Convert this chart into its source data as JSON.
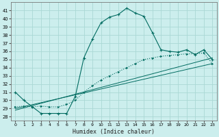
{
  "title": "",
  "xlabel": "Humidex (Indice chaleur)",
  "background_color": "#cceeed",
  "grid_color": "#aad8d5",
  "line_color": "#006b60",
  "xlim": [
    -0.5,
    23.5
  ],
  "ylim": [
    27.5,
    42.0
  ],
  "x_ticks": [
    0,
    1,
    2,
    3,
    4,
    5,
    6,
    7,
    8,
    9,
    10,
    11,
    12,
    13,
    14,
    15,
    16,
    17,
    18,
    19,
    20,
    21,
    22,
    23
  ],
  "y_ticks": [
    28,
    29,
    30,
    31,
    32,
    33,
    34,
    35,
    36,
    37,
    38,
    39,
    40,
    41
  ],
  "curve1_x": [
    0,
    1,
    2,
    3,
    4,
    5,
    6,
    7,
    8,
    9,
    10,
    11,
    12,
    13,
    14,
    15,
    16,
    17,
    18,
    19,
    20,
    21,
    22,
    23
  ],
  "curve1_y": [
    31.0,
    30.0,
    29.2,
    28.4,
    28.4,
    28.4,
    28.4,
    30.5,
    35.2,
    37.5,
    39.5,
    40.2,
    40.5,
    41.3,
    40.7,
    40.3,
    38.3,
    36.2,
    36.0,
    35.9,
    36.2,
    35.6,
    36.2,
    35.0
  ],
  "curve2_x": [
    0,
    1,
    2,
    3,
    4,
    5,
    6,
    7,
    8,
    9,
    10,
    11,
    12,
    13,
    14,
    15,
    16,
    17,
    18,
    19,
    20,
    21,
    22,
    23
  ],
  "curve2_y": [
    29.2,
    29.3,
    29.2,
    29.3,
    29.2,
    29.2,
    29.5,
    30.0,
    31.0,
    31.8,
    32.5,
    33.0,
    33.5,
    34.0,
    34.5,
    35.0,
    35.2,
    35.4,
    35.5,
    35.6,
    35.7,
    35.7,
    35.8,
    34.5
  ],
  "line1_x": [
    0,
    23
  ],
  "line1_y": [
    29.0,
    34.5
  ],
  "line2_x": [
    0,
    23
  ],
  "line2_y": [
    28.8,
    35.2
  ]
}
